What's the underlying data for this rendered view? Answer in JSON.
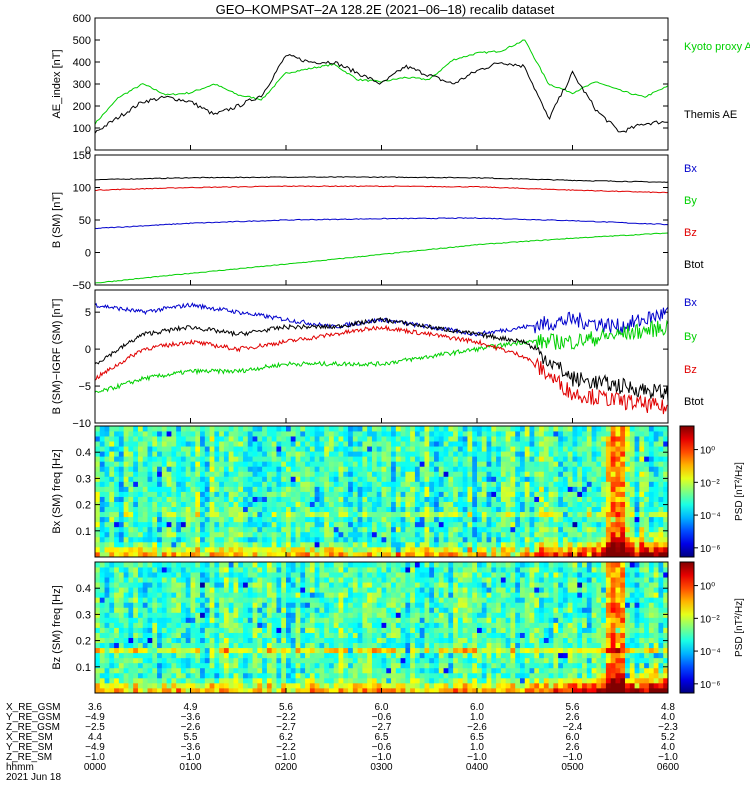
{
  "title": "GEO–KOMPSAT–2A 128.2E (2021–06–18) recalib dataset",
  "colors": {
    "black": "#000000",
    "red": "#e00000",
    "green": "#00d000",
    "blue": "#0000cc"
  },
  "chart_data": [
    {
      "type": "line",
      "ylabel": "AE_index [nT]",
      "ylim": [
        0,
        600
      ],
      "yticks": [
        "0",
        "100",
        "200",
        "300",
        "400",
        "500",
        "600"
      ],
      "x_hours": [
        0,
        0.25,
        0.5,
        0.75,
        1,
        1.25,
        1.5,
        1.75,
        2,
        2.25,
        2.5,
        2.75,
        3,
        3.25,
        3.5,
        3.75,
        4,
        4.25,
        4.5,
        4.75,
        5,
        5.25,
        5.5,
        5.75,
        6
      ],
      "series": [
        {
          "name": "Kyoto proxy AE",
          "color": "green",
          "values": [
            120,
            240,
            300,
            250,
            260,
            300,
            250,
            230,
            350,
            370,
            390,
            320,
            310,
            330,
            320,
            410,
            440,
            450,
            500,
            300,
            260,
            310,
            270,
            240,
            290
          ]
        },
        {
          "name": "Themis AE",
          "color": "black",
          "values": [
            80,
            150,
            220,
            240,
            220,
            160,
            200,
            250,
            430,
            400,
            400,
            350,
            300,
            380,
            340,
            300,
            360,
            400,
            380,
            140,
            350,
            180,
            80,
            120,
            130
          ]
        }
      ]
    },
    {
      "type": "line",
      "ylabel": "B (SM) [nT]",
      "ylim": [
        -50,
        150
      ],
      "yticks": [
        "−50",
        "0",
        "50",
        "100",
        "150"
      ],
      "x_hours": [
        0,
        1,
        2,
        3,
        4,
        5,
        6
      ],
      "series": [
        {
          "name": "Btot",
          "color": "black",
          "values": [
            112,
            115,
            116,
            116,
            115,
            111,
            108
          ]
        },
        {
          "name": "Bz",
          "color": "red",
          "values": [
            96,
            100,
            102,
            102,
            101,
            96,
            92
          ]
        },
        {
          "name": "Bx",
          "color": "blue",
          "values": [
            37,
            45,
            50,
            52,
            53,
            49,
            43
          ]
        },
        {
          "name": "By",
          "color": "green",
          "values": [
            -47,
            -32,
            -18,
            -3,
            12,
            22,
            30
          ]
        }
      ]
    },
    {
      "type": "line",
      "ylabel": "B (SM)−IGRF (SM) [nT]",
      "ylim": [
        -10,
        8
      ],
      "yticks": [
        "−10",
        "−5",
        "0",
        "5"
      ],
      "x_hours": [
        0,
        0.5,
        1,
        1.5,
        2,
        2.5,
        3,
        3.5,
        4,
        4.5,
        5,
        5.5,
        6
      ],
      "series": [
        {
          "name": "Bx",
          "color": "blue",
          "values": [
            6,
            5,
            6,
            5,
            4,
            3,
            4,
            3,
            2,
            3,
            4,
            3,
            5
          ]
        },
        {
          "name": "By",
          "color": "green",
          "values": [
            -6,
            -4,
            -3,
            -3,
            -2,
            -2,
            -2,
            -1,
            0,
            1,
            1,
            2,
            3
          ]
        },
        {
          "name": "Bz",
          "color": "red",
          "values": [
            -4,
            0,
            1,
            0,
            1,
            2,
            3,
            2,
            1,
            -1,
            -6,
            -7,
            -8
          ]
        },
        {
          "name": "Btot",
          "color": "black",
          "values": [
            -2,
            2,
            3,
            2,
            3,
            3,
            4,
            3,
            2,
            1,
            -4,
            -5,
            -6
          ]
        }
      ]
    },
    {
      "type": "heatmap",
      "ylabel": "Bx (SM) freq [Hz]",
      "yticks": [
        "0.1",
        "0.2",
        "0.3",
        "0.4"
      ],
      "ylim": [
        0,
        0.5
      ],
      "colorbar_label": "PSD [nT²/Hz]",
      "colorbar_ticks": [
        "10⁰",
        "10⁻²",
        "10⁻⁴",
        "10⁻⁶"
      ]
    },
    {
      "type": "heatmap",
      "ylabel": "Bz (SM) freq [Hz]",
      "yticks": [
        "0.1",
        "0.2",
        "0.3",
        "0.4"
      ],
      "ylim": [
        0,
        0.5
      ],
      "colorbar_label": "PSD [nT²/Hz]",
      "colorbar_ticks": [
        "10⁰",
        "10⁻²",
        "10⁻⁴",
        "10⁻⁶"
      ]
    }
  ],
  "ephemeris": {
    "row_labels": [
      "X_RE_GSM",
      "Y_RE_GSM",
      "Z_RE_GSM",
      "X_RE_SM",
      "Y_RE_SM",
      "Z_RE_SM",
      "hhmm"
    ],
    "date_label": "2021 Jun 18",
    "columns": [
      [
        "3.6",
        "−4.9",
        "−2.5",
        "4.4",
        "−4.9",
        "−1.0",
        "0000"
      ],
      [
        "4.9",
        "−3.6",
        "−2.6",
        "5.5",
        "−3.6",
        "−1.0",
        "0100"
      ],
      [
        "5.6",
        "−2.2",
        "−2.7",
        "6.2",
        "−2.2",
        "−1.0",
        "0200"
      ],
      [
        "6.0",
        "−0.6",
        "−2.7",
        "6.5",
        "−0.6",
        "−1.0",
        "0300"
      ],
      [
        "6.0",
        "1.0",
        "−2.6",
        "6.5",
        "1.0",
        "−1.0",
        "0400"
      ],
      [
        "5.6",
        "2.6",
        "−2.4",
        "6.0",
        "2.6",
        "−1.0",
        "0500"
      ],
      [
        "4.8",
        "4.0",
        "−2.3",
        "5.2",
        "4.0",
        "−1.0",
        "0600"
      ]
    ]
  }
}
